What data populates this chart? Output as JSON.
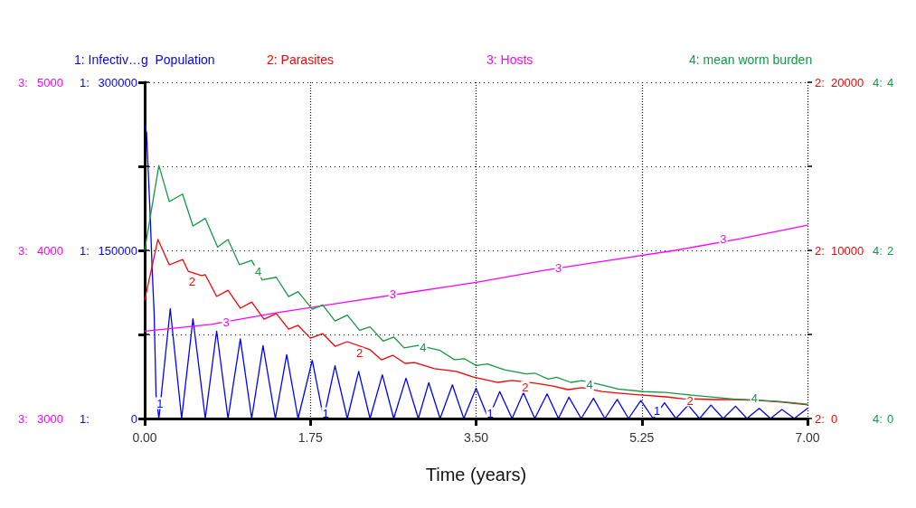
{
  "chart_data": [
    {
      "type": "line",
      "xlabel": "Time (years)",
      "ylabel": "1:",
      "y2label": "2:",
      "y3label": "3:",
      "xlim": [
        0,
        7
      ],
      "xticks": [
        {
          "value": 0,
          "label": "0.00"
        },
        1.75,
        {
          "value": 3.5,
          "label": "3.50"
        },
        5.25,
        {
          "value": 7,
          "label": "7.00"
        }
      ],
      "ylim": [
        0,
        300000
      ],
      "yticks": [
        0,
        {
          "value": 75000,
          "label": null
        },
        150000,
        {
          "value": 225000,
          "label": null
        },
        300000
      ],
      "y2lim": [
        0,
        20000
      ],
      "y2ticks": [
        0,
        {
          "value": 5000,
          "label": null
        },
        10000,
        {
          "value": 15000,
          "label": null
        },
        20000
      ],
      "y3lim": [
        3000,
        5000
      ],
      "y3ticks": [
        3000,
        {
          "value": 3500,
          "label": null
        },
        4000,
        {
          "value": 4500,
          "label": null
        },
        5000
      ],
      "grid": true,
      "legend": "top",
      "marker": "none",
      "line_style": "solid",
      "series": [
        {
          "name": "1: Infectiv…g  Population",
          "color": "#0000ff",
          "x": [
            0,
            0.02,
            0.06,
            0.08,
            0.1,
            0.12,
            0.15,
            0.27,
            0.39,
            0.51,
            0.64,
            0.76,
            0.88,
            1.01,
            1.13,
            1.25,
            1.38,
            1.5,
            1.62,
            1.77,
            1.89,
            2.01,
            2.14,
            2.26,
            2.38,
            2.51,
            2.63,
            2.76,
            2.89,
            3.0,
            3.12,
            3.25,
            3.37,
            3.5,
            3.63,
            3.75,
            3.88,
            4.0,
            4.12,
            4.25,
            4.37,
            4.48,
            4.61,
            4.74,
            4.86,
            4.99,
            5.11,
            5.24,
            5.37,
            5.49,
            5.61,
            5.74,
            5.86,
            5.98,
            6.11,
            6.24,
            6.36,
            6.49,
            6.61,
            6.73,
            6.86,
            7.0
          ],
          "values": [
            262000,
            255000,
            177000,
            131000,
            94000,
            21000,
            0,
            98000,
            0,
            89000,
            0,
            78000,
            0,
            71000,
            0,
            65000,
            0,
            57000,
            0,
            52000,
            0,
            47000,
            0,
            42000,
            0,
            39000,
            0,
            36000,
            0,
            32000,
            0,
            30000,
            0,
            27000,
            0,
            24000,
            0,
            23000,
            0,
            22000,
            0,
            19000,
            0,
            18000,
            0,
            17000,
            0,
            16000,
            0,
            14000,
            0,
            12000,
            0,
            12000,
            0,
            11000,
            0,
            9000,
            0,
            8000,
            0,
            9000
          ]
        },
        {
          "name": "2: Parasites",
          "color": "#ff0000",
          "axis": "y2",
          "x": [
            0,
            0.14,
            0.26,
            0.4,
            0.46,
            0.6,
            0.64,
            0.76,
            0.88,
            1.01,
            1.13,
            1.26,
            1.39,
            1.52,
            1.62,
            1.75,
            1.88,
            2.01,
            2.14,
            2.38,
            2.5,
            2.62,
            2.75,
            2.85,
            3.06,
            3.29,
            3.47,
            3.73,
            3.88,
            4.12,
            4.3,
            4.47,
            4.62,
            4.83,
            5.0,
            5.23,
            5.5,
            5.68,
            6.03,
            6.2,
            6.47,
            6.73,
            7.0
          ],
          "values": [
            7040,
            10650,
            9140,
            9460,
            8760,
            8500,
            8550,
            7260,
            7630,
            6560,
            6930,
            5910,
            6240,
            5320,
            5540,
            4780,
            5050,
            4300,
            4570,
            4090,
            3490,
            3760,
            3280,
            3330,
            2960,
            2800,
            2470,
            2150,
            2260,
            2100,
            1940,
            1720,
            1830,
            1610,
            1510,
            1400,
            1290,
            1180,
            1130,
            1130,
            1080,
            970,
            810
          ]
        },
        {
          "name": "3: Hosts",
          "color": "#ff00ff",
          "axis": "y3",
          "x": [
            0,
            0.7,
            1.4,
            2.1,
            2.8,
            3.5,
            4.2,
            4.9,
            5.6,
            6.3,
            7
          ],
          "values": [
            3520,
            3560,
            3630,
            3690,
            3750,
            3810,
            3880,
            3940,
            4000,
            4070,
            4150
          ]
        }
      ],
      "annotations": [
        {
          "text": "1",
          "x": 0.16,
          "y": 13700
        },
        {
          "text": "1",
          "x": 1.91,
          "y": 4800
        },
        {
          "text": "1",
          "x": 3.65,
          "y": 4800
        },
        {
          "text": "1",
          "x": 5.41,
          "y": 7000
        },
        {
          "text": "2",
          "x": 0.5,
          "y": 121800
        },
        {
          "text": "2",
          "x": 2.27,
          "y": 58100
        },
        {
          "text": "2",
          "x": 4.02,
          "y": 28200
        },
        {
          "text": "2",
          "x": 5.76,
          "y": 16100
        },
        {
          "text": "3",
          "x": 0.86,
          "y": 85500
        },
        {
          "text": "3",
          "x": 2.62,
          "y": 110500
        },
        {
          "text": "3",
          "x": 4.37,
          "y": 133900
        },
        {
          "text": "3",
          "x": 6.11,
          "y": 159700
        }
      ]
    },
    {
      "type": "line",
      "ylabel": "4:",
      "xlim": [
        0,
        7
      ],
      "ylim": [
        0,
        4
      ],
      "yticks": [
        0,
        {
          "value": 1,
          "label": null
        },
        2,
        {
          "value": 3,
          "label": null
        },
        4
      ],
      "tick_labels": "y",
      "legend": "top",
      "marker": "none",
      "line_style": "solid",
      "series": [
        {
          "name": "4: mean worm burden",
          "color": "#119944",
          "x": [
            0,
            0.15,
            0.26,
            0.4,
            0.51,
            0.64,
            0.77,
            0.88,
            1.0,
            1.13,
            1.24,
            1.39,
            1.52,
            1.62,
            1.77,
            1.88,
            2.01,
            2.14,
            2.27,
            2.38,
            2.52,
            2.63,
            2.74,
            2.89,
            3.12,
            3.27,
            3.38,
            3.5,
            3.62,
            3.8,
            4.03,
            4.12,
            4.26,
            4.35,
            4.5,
            4.62,
            4.79,
            5.0,
            5.27,
            5.5,
            5.68,
            5.85,
            6.24,
            6.47,
            6.73,
            7.0
          ],
          "values": [
            2.0,
            3.01,
            2.58,
            2.67,
            2.29,
            2.38,
            2.04,
            2.13,
            1.83,
            1.88,
            1.65,
            1.68,
            1.45,
            1.51,
            1.3,
            1.35,
            1.16,
            1.23,
            1.05,
            1.09,
            0.92,
            0.97,
            0.84,
            0.87,
            0.81,
            0.7,
            0.71,
            0.63,
            0.65,
            0.58,
            0.53,
            0.54,
            0.47,
            0.49,
            0.43,
            0.45,
            0.41,
            0.35,
            0.32,
            0.31,
            0.29,
            0.27,
            0.23,
            0.22,
            0.2,
            0.17
          ]
        }
      ],
      "annotations": [
        {
          "text": "4",
          "x": 1.2,
          "y": 1.75
        },
        {
          "text": "4",
          "x": 2.94,
          "y": 0.84
        },
        {
          "text": "4",
          "x": 4.7,
          "y": 0.4
        },
        {
          "text": "4",
          "x": 6.44,
          "y": 0.24
        }
      ]
    }
  ]
}
